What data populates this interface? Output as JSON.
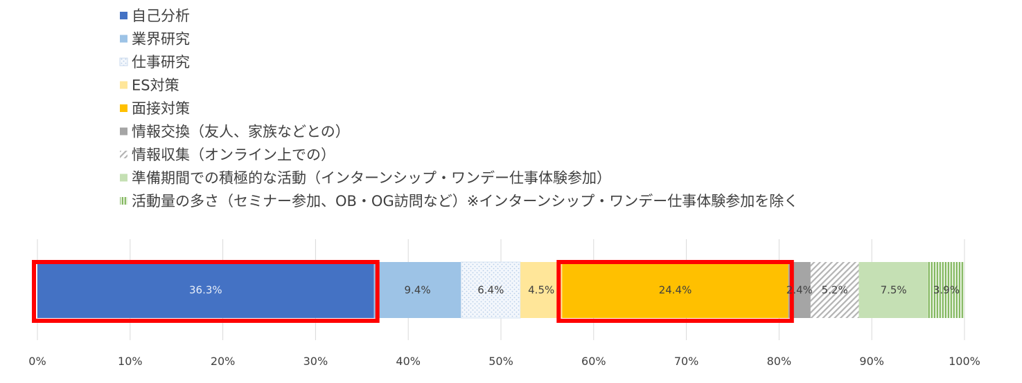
{
  "chart_data": {
    "type": "bar",
    "orientation": "horizontal",
    "stacked": "100%",
    "title": "",
    "xlabel": "",
    "ylabel": "",
    "xlim": [
      0,
      100
    ],
    "x_ticks": [
      "0%",
      "10%",
      "20%",
      "30%",
      "40%",
      "50%",
      "60%",
      "70%",
      "80%",
      "90%",
      "100%"
    ],
    "grid": "vertical",
    "legend_position": "top-left",
    "categories": [
      ""
    ],
    "series": [
      {
        "name": "自己分析",
        "values": [
          36.3
        ],
        "label": "36.3%",
        "color": "#4472C4",
        "pattern": "solid"
      },
      {
        "name": "業界研究",
        "values": [
          9.4
        ],
        "label": "9.4%",
        "color": "#9DC3E6",
        "pattern": "solid"
      },
      {
        "name": "仕事研究",
        "values": [
          6.4
        ],
        "label": "6.4%",
        "color": "#DEEBF7",
        "pattern": "dots"
      },
      {
        "name": "ES対策",
        "values": [
          4.5
        ],
        "label": "4.5%",
        "color": "#FFE699",
        "pattern": "solid"
      },
      {
        "name": "面接対策",
        "values": [
          24.4
        ],
        "label": "24.4%",
        "color": "#FFC000",
        "pattern": "solid"
      },
      {
        "name": "情報交換（友人、家族などとの）",
        "values": [
          2.4
        ],
        "label": "2.4%",
        "color": "#A5A5A5",
        "pattern": "solid"
      },
      {
        "name": "情報収集（オンライン上での）",
        "values": [
          5.2
        ],
        "label": "5.2%",
        "color": "#BFBFBF",
        "pattern": "diagonal"
      },
      {
        "name": "準備期間での積極的な活動（インターンシップ・ワンデー仕事体験参加）",
        "values": [
          7.5
        ],
        "label": "7.5%",
        "color": "#C5E0B4",
        "pattern": "solid"
      },
      {
        "name": "活動量の多さ（セミナー参加、OB・OG訪問など）※インターンシップ・ワンデー仕事体験参加を除く",
        "values": [
          3.9
        ],
        "label": "3.9%",
        "color": "#A9D18E",
        "pattern": "vertical"
      }
    ],
    "highlights": [
      {
        "series": "自己分析",
        "color": "#FF0000"
      },
      {
        "series": "面接対策",
        "color": "#FF0000"
      }
    ]
  }
}
